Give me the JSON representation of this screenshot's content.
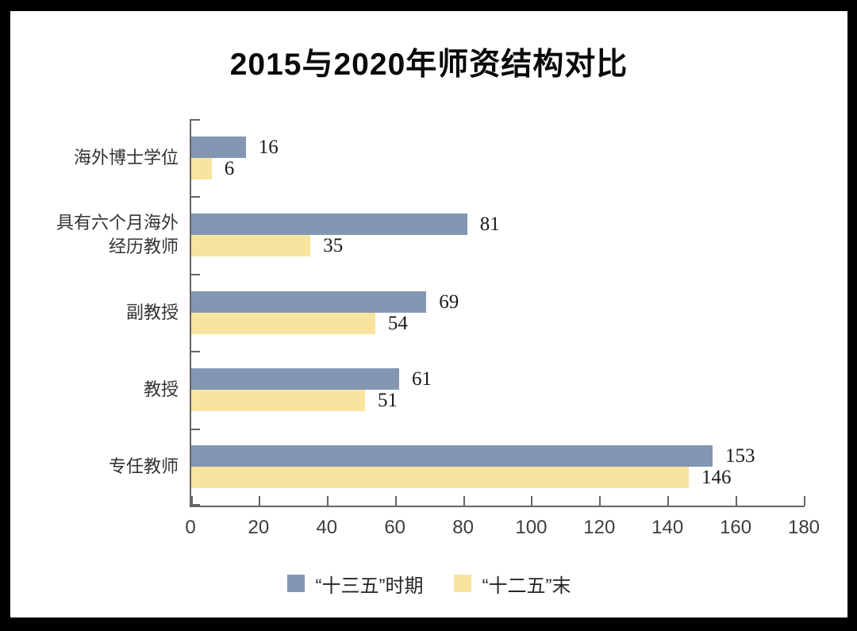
{
  "title": "2015与2020年师资结构对比",
  "chart_data": {
    "type": "bar",
    "orientation": "horizontal",
    "title": "2015与2020年师资结构对比",
    "categories_top_to_bottom": [
      "海外博士学位",
      "具有六个月海外\n经历教师",
      "副教授",
      "教授",
      "专任教师"
    ],
    "series": [
      {
        "name": "“十三五”时期",
        "color": "#8497B2",
        "values": [
          16,
          81,
          69,
          61,
          153
        ]
      },
      {
        "name": "“十二五”末",
        "color": "#F8E49E",
        "values": [
          6,
          35,
          54,
          51,
          146
        ]
      }
    ],
    "data_labels": [
      [
        "16",
        "81",
        "69",
        "61",
        "153"
      ],
      [
        "6",
        "35",
        "54",
        "51",
        "146"
      ]
    ],
    "xlim": [
      0,
      180
    ],
    "xtick_labels": [
      "0",
      "20",
      "40",
      "60",
      "80",
      "100",
      "120",
      "140",
      "160",
      "180"
    ],
    "grid": false,
    "legend_position": "bottom",
    "axis_color": "#666666",
    "value_label_color": "#1a1a1a",
    "tick_label_color": "#3d3d3d",
    "category_label_color": "#333333"
  }
}
